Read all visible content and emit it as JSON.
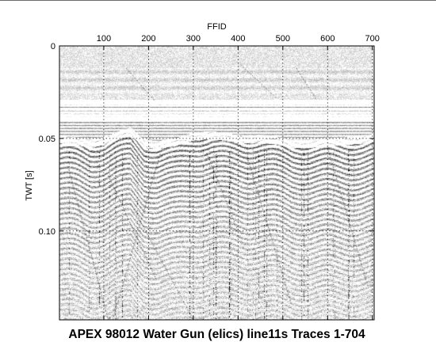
{
  "chart_data": {
    "type": "heatmap",
    "title": "APEX 98012 Water Gun (elics) line11s Traces 1-704",
    "xlabel": "FFID",
    "ylabel": "TWT [s]",
    "x_axis_position": "top",
    "xlim": [
      1,
      704
    ],
    "ylim": [
      0,
      0.148
    ],
    "y_inverted": true,
    "x_ticks": [
      100,
      200,
      300,
      400,
      500,
      600,
      700
    ],
    "x_tick_labels": [
      "100",
      "200",
      "300",
      "400",
      "500",
      "600",
      "700"
    ],
    "y_ticks": [
      0,
      0.05,
      0.1
    ],
    "y_tick_labels": [
      "0",
      "0.05",
      "0.10"
    ],
    "grid": true,
    "grid_style": "dotted",
    "colormap": "grayscale",
    "traces": [
      1,
      704
    ],
    "events": {
      "seafloor_twt_s": 0.0297,
      "seafloor_multiple_twt_s": [
        0.0318,
        0.0342,
        0.0362,
        0.0384,
        0.0402
      ],
      "subbottom_reflector": {
        "x": [
          1,
          40,
          70,
          100,
          130,
          160,
          190,
          220,
          260,
          300,
          340,
          380,
          420,
          450,
          480,
          520,
          560,
          600,
          640,
          680,
          704
        ],
        "twt_s": [
          0.0505,
          0.0515,
          0.053,
          0.0515,
          0.0485,
          0.046,
          0.0525,
          0.0535,
          0.052,
          0.049,
          0.048,
          0.0495,
          0.0505,
          0.05,
          0.051,
          0.053,
          0.053,
          0.052,
          0.0515,
          0.0505,
          0.0495
        ]
      }
    }
  }
}
